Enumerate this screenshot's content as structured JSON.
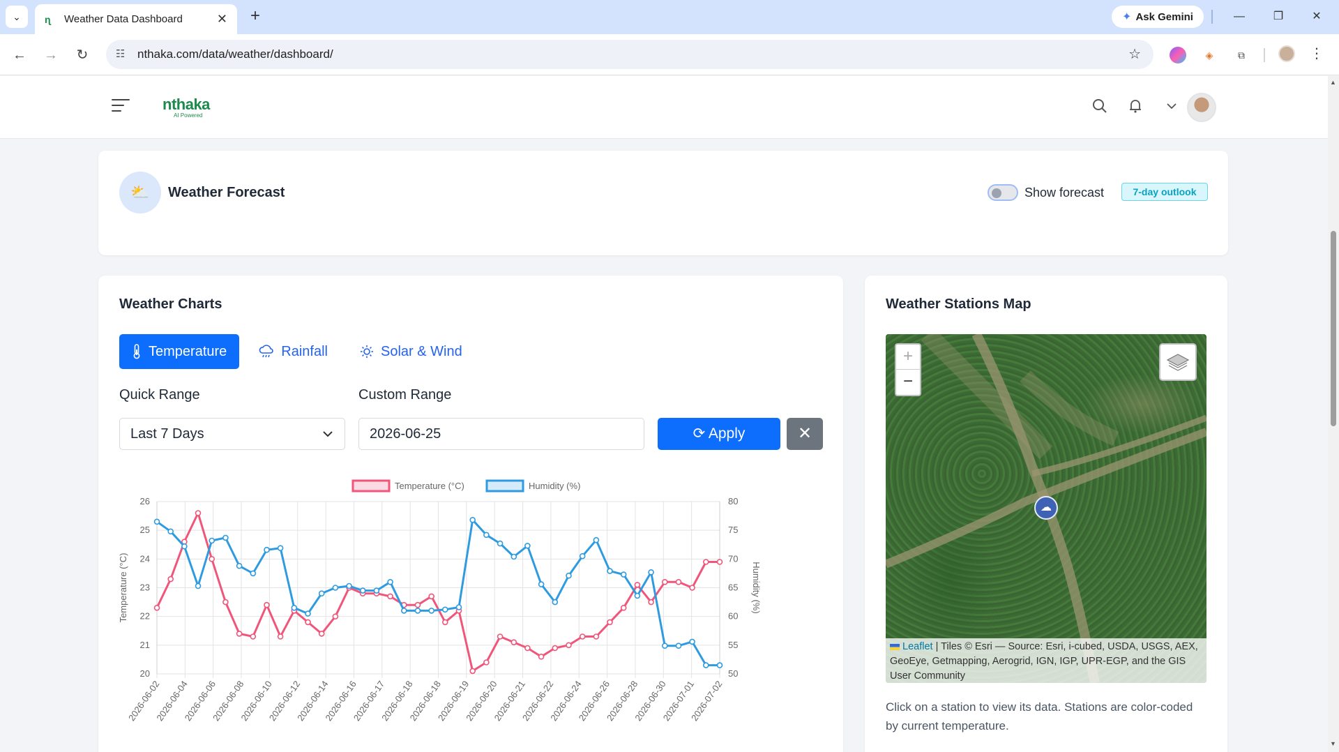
{
  "browser": {
    "tab_title": "Weather Data Dashboard",
    "url": "nthaka.com/data/weather/dashboard/",
    "ask_gemini": "Ask Gemini"
  },
  "header": {
    "brand": "nthaka",
    "brand_sub": "AI Powered"
  },
  "forecast": {
    "title": "Weather Forecast",
    "toggle_label": "Show forecast",
    "badge": "7-day outlook"
  },
  "charts": {
    "title": "Weather Charts",
    "tabs": [
      {
        "label": "Temperature",
        "icon": "thermometer-icon"
      },
      {
        "label": "Rainfall",
        "icon": "rain-cloud-icon"
      },
      {
        "label": "Solar & Wind",
        "icon": "sun-icon"
      }
    ],
    "quick_range_label": "Quick Range",
    "quick_range_value": "Last 7 Days",
    "custom_range_label": "Custom Range",
    "custom_range_value": "2026-06-25",
    "apply_label": "Apply"
  },
  "chart_data": {
    "type": "line",
    "x": [
      "2026-06-02",
      "2026-06-03",
      "2026-06-04",
      "2026-06-05",
      "2026-06-06",
      "2026-06-07",
      "2026-06-08",
      "2026-06-09",
      "2026-06-10",
      "2026-06-11",
      "2026-06-12",
      "2026-06-13",
      "2026-06-14",
      "2026-06-15",
      "2026-06-16",
      "2026-06-16",
      "2026-06-17",
      "2026-06-17",
      "2026-06-18",
      "2026-06-18",
      "2026-06-18",
      "2026-06-19",
      "2026-06-19",
      "2026-06-20",
      "2026-06-20",
      "2026-06-21",
      "2026-06-21",
      "2026-06-22",
      "2026-06-22",
      "2026-06-23",
      "2026-06-24",
      "2026-06-25",
      "2026-06-26",
      "2026-06-27",
      "2026-06-28",
      "2026-06-29",
      "2026-06-30",
      "2026-06-30",
      "2026-07-01",
      "2026-07-01",
      "2026-07-02",
      "2026-07-02"
    ],
    "tick_labels": [
      "2026-06-02",
      "2026-06-04",
      "2026-06-06",
      "2026-06-08",
      "2026-06-10",
      "2026-06-12",
      "2026-06-14",
      "2026-06-16",
      "2026-06-17",
      "2026-06-18",
      "2026-06-18",
      "2026-06-19",
      "2026-06-20",
      "2026-06-21",
      "2026-06-22",
      "2026-06-24",
      "2026-06-26",
      "2026-06-28",
      "2026-06-30",
      "2026-07-01",
      "2026-07-02"
    ],
    "series": [
      {
        "name": "Temperature (°C)",
        "axis": "left",
        "color": "#f0557a",
        "values": [
          22.3,
          23.3,
          24.6,
          25.6,
          24.0,
          22.5,
          21.4,
          21.3,
          22.4,
          21.3,
          22.2,
          21.8,
          21.4,
          22.0,
          23.0,
          22.8,
          22.8,
          22.7,
          22.4,
          22.4,
          22.7,
          21.8,
          22.2,
          20.1,
          20.4,
          21.3,
          21.1,
          20.9,
          20.6,
          20.9,
          21.0,
          21.3,
          21.3,
          21.8,
          22.3,
          23.1,
          22.5,
          23.2,
          23.2,
          23.0,
          23.9,
          23.9
        ]
      },
      {
        "name": "Humidity (%)",
        "axis": "right",
        "color": "#2e9be0",
        "values": [
          76.5,
          74.8,
          72.2,
          65.3,
          73.2,
          73.7,
          68.8,
          67.5,
          71.6,
          71.9,
          61.5,
          60.5,
          64.0,
          65.0,
          65.3,
          64.5,
          64.5,
          66.0,
          61.0,
          61.0,
          61.0,
          61.2,
          61.6,
          76.8,
          74.2,
          72.7,
          70.4,
          72.3,
          65.6,
          62.5,
          67.1,
          70.5,
          73.3,
          67.9,
          67.3,
          63.6,
          67.7,
          54.9,
          54.9,
          55.6,
          51.5,
          51.5
        ]
      }
    ],
    "ylabel": "Temperature (°C)",
    "ylabel_right": "Humidity (%)",
    "ylim": [
      20,
      26
    ],
    "ylim_right": [
      50,
      80
    ],
    "yticks": [
      20,
      21,
      22,
      23,
      24,
      25,
      26
    ],
    "yticks_right": [
      50,
      55,
      60,
      65,
      70,
      75,
      80
    ],
    "legend": "top",
    "grid": true
  },
  "map": {
    "title": "Weather Stations Map",
    "attribution_leaflet": "Leaflet",
    "attribution_text": "| Tiles © Esri — Source: Esri, i-cubed, USDA, USGS, AEX, GeoEye, Getmapping, Aerogrid, IGN, IGP, UPR-EGP, and the GIS User Community",
    "note": "Click on a station to view its data. Stations are color-coded by current temperature."
  }
}
